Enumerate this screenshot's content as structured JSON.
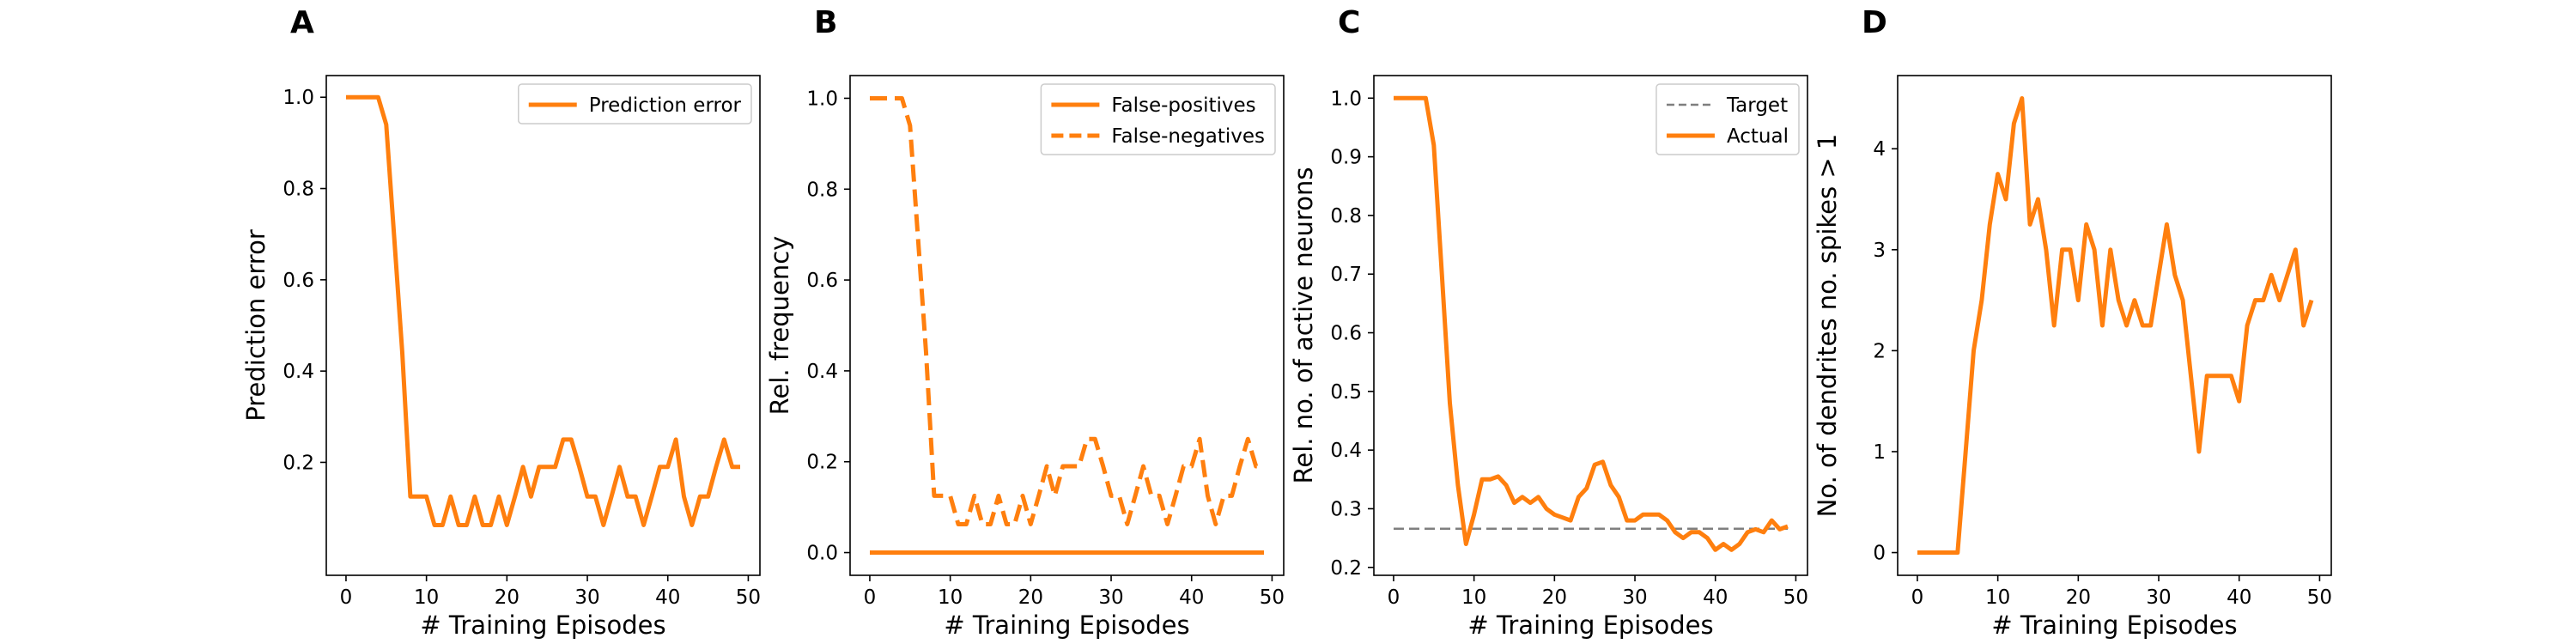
{
  "colors": {
    "orange": "#ff7f0e",
    "target": "#7f7f7f",
    "axis": "#000000",
    "legend_border": "#cccccc"
  },
  "chart_data": [
    {
      "panel": "A",
      "type": "line",
      "xlabel": "# Training Episodes",
      "ylabel": "Prediction error",
      "xlim": [
        -2.45,
        51.45
      ],
      "ylim": [
        -0.0475,
        1.0475
      ],
      "xticks": [
        0,
        10,
        20,
        30,
        40,
        50
      ],
      "yticks": [
        0.2,
        0.4,
        0.6,
        0.8,
        1.0
      ],
      "ytick_labels": [
        "0.2",
        "0.4",
        "0.6",
        "0.8",
        "1.0"
      ],
      "legend_loc": "upper right",
      "series": [
        {
          "name": "Prediction error",
          "color": "#ff7f0e",
          "dash": "solid",
          "x": [
            0,
            1,
            2,
            3,
            4,
            5,
            6,
            7,
            8,
            9,
            10,
            11,
            12,
            13,
            14,
            15,
            16,
            17,
            18,
            19,
            20,
            21,
            22,
            23,
            24,
            25,
            26,
            27,
            28,
            29,
            30,
            31,
            32,
            33,
            34,
            35,
            36,
            37,
            38,
            39,
            40,
            41,
            42,
            43,
            44,
            45,
            46,
            47,
            48,
            49
          ],
          "y": [
            1.0,
            1.0,
            1.0,
            1.0,
            1.0,
            0.94,
            0.69,
            0.44,
            0.125,
            0.125,
            0.125,
            0.0625,
            0.0625,
            0.125,
            0.0625,
            0.0625,
            0.125,
            0.0625,
            0.0625,
            0.125,
            0.0625,
            0.125,
            0.19,
            0.125,
            0.19,
            0.19,
            0.19,
            0.25,
            0.25,
            0.19,
            0.125,
            0.125,
            0.0625,
            0.125,
            0.19,
            0.125,
            0.125,
            0.0625,
            0.125,
            0.19,
            0.19,
            0.25,
            0.125,
            0.0625,
            0.125,
            0.125,
            0.19,
            0.25,
            0.19,
            0.19
          ]
        }
      ]
    },
    {
      "panel": "B",
      "type": "line",
      "xlabel": "# Training Episodes",
      "ylabel": "Rel. frequency",
      "xlim": [
        -2.45,
        51.45
      ],
      "ylim": [
        -0.05,
        1.05
      ],
      "xticks": [
        0,
        10,
        20,
        30,
        40,
        50
      ],
      "yticks": [
        0.0,
        0.2,
        0.4,
        0.6,
        0.8,
        1.0
      ],
      "ytick_labels": [
        "0.0",
        "0.2",
        "0.4",
        "0.6",
        "0.8",
        "1.0"
      ],
      "legend_loc": "upper right",
      "series": [
        {
          "name": "False-positives",
          "color": "#ff7f0e",
          "dash": "solid",
          "x": [
            0,
            1,
            2,
            3,
            4,
            5,
            6,
            7,
            8,
            9,
            10,
            11,
            12,
            13,
            14,
            15,
            16,
            17,
            18,
            19,
            20,
            21,
            22,
            23,
            24,
            25,
            26,
            27,
            28,
            29,
            30,
            31,
            32,
            33,
            34,
            35,
            36,
            37,
            38,
            39,
            40,
            41,
            42,
            43,
            44,
            45,
            46,
            47,
            48,
            49
          ],
          "y": [
            0,
            0,
            0,
            0,
            0,
            0,
            0,
            0,
            0,
            0,
            0,
            0,
            0,
            0,
            0,
            0,
            0,
            0,
            0,
            0,
            0,
            0,
            0,
            0,
            0,
            0,
            0,
            0,
            0,
            0,
            0,
            0,
            0,
            0,
            0,
            0,
            0,
            0,
            0,
            0,
            0,
            0,
            0,
            0,
            0,
            0,
            0,
            0,
            0,
            0
          ]
        },
        {
          "name": "False-negatives",
          "color": "#ff7f0e",
          "dash": "dashed",
          "x": [
            0,
            1,
            2,
            3,
            4,
            5,
            6,
            7,
            8,
            9,
            10,
            11,
            12,
            13,
            14,
            15,
            16,
            17,
            18,
            19,
            20,
            21,
            22,
            23,
            24,
            25,
            26,
            27,
            28,
            29,
            30,
            31,
            32,
            33,
            34,
            35,
            36,
            37,
            38,
            39,
            40,
            41,
            42,
            43,
            44,
            45,
            46,
            47,
            48,
            49
          ],
          "y": [
            1.0,
            1.0,
            1.0,
            1.0,
            1.0,
            0.94,
            0.69,
            0.44,
            0.125,
            0.125,
            0.125,
            0.0625,
            0.0625,
            0.125,
            0.0625,
            0.0625,
            0.125,
            0.0625,
            0.0625,
            0.125,
            0.0625,
            0.125,
            0.19,
            0.125,
            0.19,
            0.19,
            0.19,
            0.25,
            0.25,
            0.19,
            0.125,
            0.125,
            0.0625,
            0.125,
            0.19,
            0.125,
            0.125,
            0.0625,
            0.125,
            0.19,
            0.19,
            0.25,
            0.125,
            0.0625,
            0.125,
            0.125,
            0.19,
            0.25,
            0.19,
            0.19
          ]
        }
      ]
    },
    {
      "panel": "C",
      "type": "line",
      "xlabel": "# Training Episodes",
      "ylabel": "Rel. no. of active neurons",
      "xlim": [
        -2.45,
        51.45
      ],
      "ylim": [
        0.1865,
        1.0385
      ],
      "xticks": [
        0,
        10,
        20,
        30,
        40,
        50
      ],
      "yticks": [
        0.2,
        0.3,
        0.4,
        0.5,
        0.6,
        0.7,
        0.8,
        0.9,
        1.0
      ],
      "ytick_labels": [
        "0.2",
        "0.3",
        "0.4",
        "0.5",
        "0.6",
        "0.7",
        "0.8",
        "0.9",
        "1.0"
      ],
      "legend_loc": "upper right",
      "series": [
        {
          "name": "Target",
          "color": "#7f7f7f",
          "dash": "dashed",
          "x": [
            0,
            49
          ],
          "y": [
            0.266,
            0.266
          ]
        },
        {
          "name": "Actual",
          "color": "#ff7f0e",
          "dash": "solid",
          "x": [
            0,
            1,
            2,
            3,
            4,
            5,
            6,
            7,
            8,
            9,
            10,
            11,
            12,
            13,
            14,
            15,
            16,
            17,
            18,
            19,
            20,
            21,
            22,
            23,
            24,
            25,
            26,
            27,
            28,
            29,
            30,
            31,
            32,
            33,
            34,
            35,
            36,
            37,
            38,
            39,
            40,
            41,
            42,
            43,
            44,
            45,
            46,
            47,
            48,
            49
          ],
          "y": [
            1.0,
            1.0,
            1.0,
            1.0,
            1.0,
            0.92,
            0.7,
            0.48,
            0.34,
            0.24,
            0.29,
            0.35,
            0.35,
            0.355,
            0.34,
            0.31,
            0.32,
            0.31,
            0.32,
            0.3,
            0.29,
            0.285,
            0.28,
            0.32,
            0.335,
            0.375,
            0.38,
            0.34,
            0.32,
            0.28,
            0.28,
            0.29,
            0.29,
            0.29,
            0.28,
            0.26,
            0.25,
            0.26,
            0.26,
            0.25,
            0.23,
            0.24,
            0.23,
            0.24,
            0.26,
            0.265,
            0.26,
            0.28,
            0.265,
            0.27
          ]
        }
      ]
    },
    {
      "panel": "D",
      "type": "line",
      "xlabel": "# Training Episodes",
      "ylabel": "No. of dendrites no. spikes > 1",
      "xlim": [
        -2.45,
        51.45
      ],
      "ylim": [
        -0.225,
        4.725
      ],
      "xticks": [
        0,
        10,
        20,
        30,
        40,
        50
      ],
      "yticks": [
        0,
        1,
        2,
        3,
        4
      ],
      "ytick_labels": [
        "0",
        "1",
        "2",
        "3",
        "4"
      ],
      "series": [
        {
          "name": "",
          "color": "#ff7f0e",
          "dash": "solid",
          "x": [
            0,
            1,
            2,
            3,
            4,
            5,
            6,
            7,
            8,
            9,
            10,
            11,
            12,
            13,
            14,
            15,
            16,
            17,
            18,
            19,
            20,
            21,
            22,
            23,
            24,
            25,
            26,
            27,
            28,
            29,
            30,
            31,
            32,
            33,
            34,
            35,
            36,
            37,
            38,
            39,
            40,
            41,
            42,
            43,
            44,
            45,
            46,
            47,
            48,
            49
          ],
          "y": [
            0,
            0,
            0,
            0,
            0,
            0,
            1.0,
            2.0,
            2.5,
            3.25,
            3.75,
            3.5,
            4.25,
            4.5,
            3.25,
            3.5,
            3.0,
            2.25,
            3.0,
            3.0,
            2.5,
            3.25,
            3.0,
            2.25,
            3.0,
            2.5,
            2.25,
            2.5,
            2.25,
            2.25,
            2.75,
            3.25,
            2.75,
            2.5,
            1.75,
            1.0,
            1.75,
            1.75,
            1.75,
            1.75,
            1.5,
            2.25,
            2.5,
            2.5,
            2.75,
            2.5,
            2.75,
            3.0,
            2.25,
            2.5
          ]
        }
      ]
    }
  ]
}
